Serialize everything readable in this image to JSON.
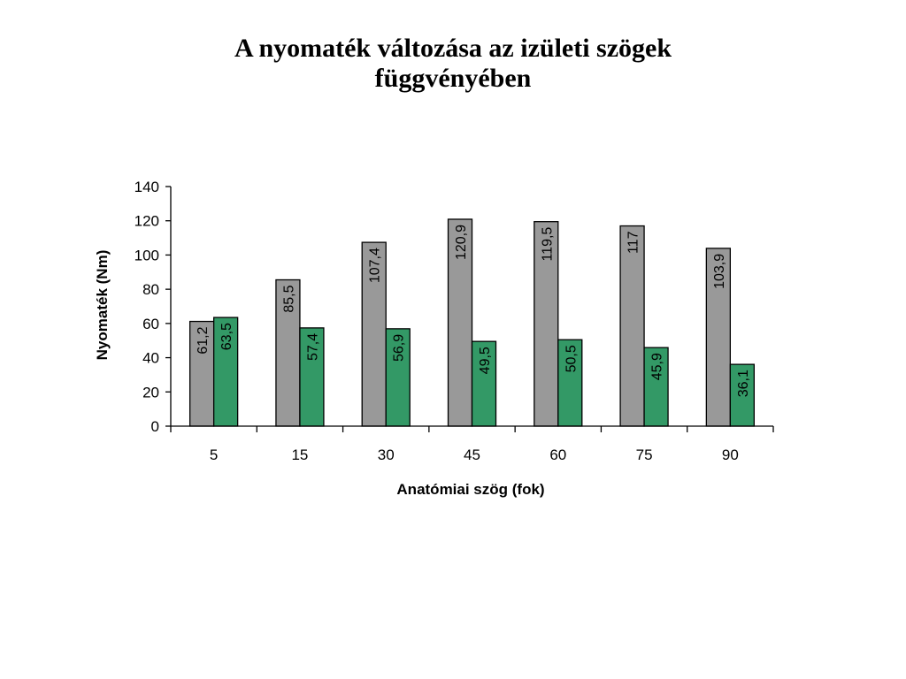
{
  "chart_data": {
    "type": "bar",
    "title_lines": [
      "A nyomaték változása az izületi szögek",
      "függvényében"
    ],
    "xlabel": "Anatómiai szög (fok)",
    "ylabel": "Nyomaték (Nm)",
    "categories": [
      "5",
      "15",
      "30",
      "45",
      "60",
      "75",
      "90"
    ],
    "ylim": [
      0,
      140
    ],
    "yticks": [
      0,
      20,
      40,
      60,
      80,
      100,
      120,
      140
    ],
    "grid": false,
    "legend": "none",
    "series": [
      {
        "values": [
          61.2,
          85.5,
          107.4,
          120.9,
          119.5,
          117,
          103.9
        ],
        "labels": [
          "61,2",
          "85,5",
          "107,4",
          "120,9",
          "119,5",
          "117",
          "103,9"
        ],
        "color": "#999999"
      },
      {
        "values": [
          63.5,
          57.4,
          56.9,
          49.5,
          50.5,
          45.9,
          36.1
        ],
        "labels": [
          "63,5",
          "57,4",
          "56,9",
          "49,5",
          "50,5",
          "45,9",
          "36,1"
        ],
        "color": "#339966"
      }
    ]
  }
}
